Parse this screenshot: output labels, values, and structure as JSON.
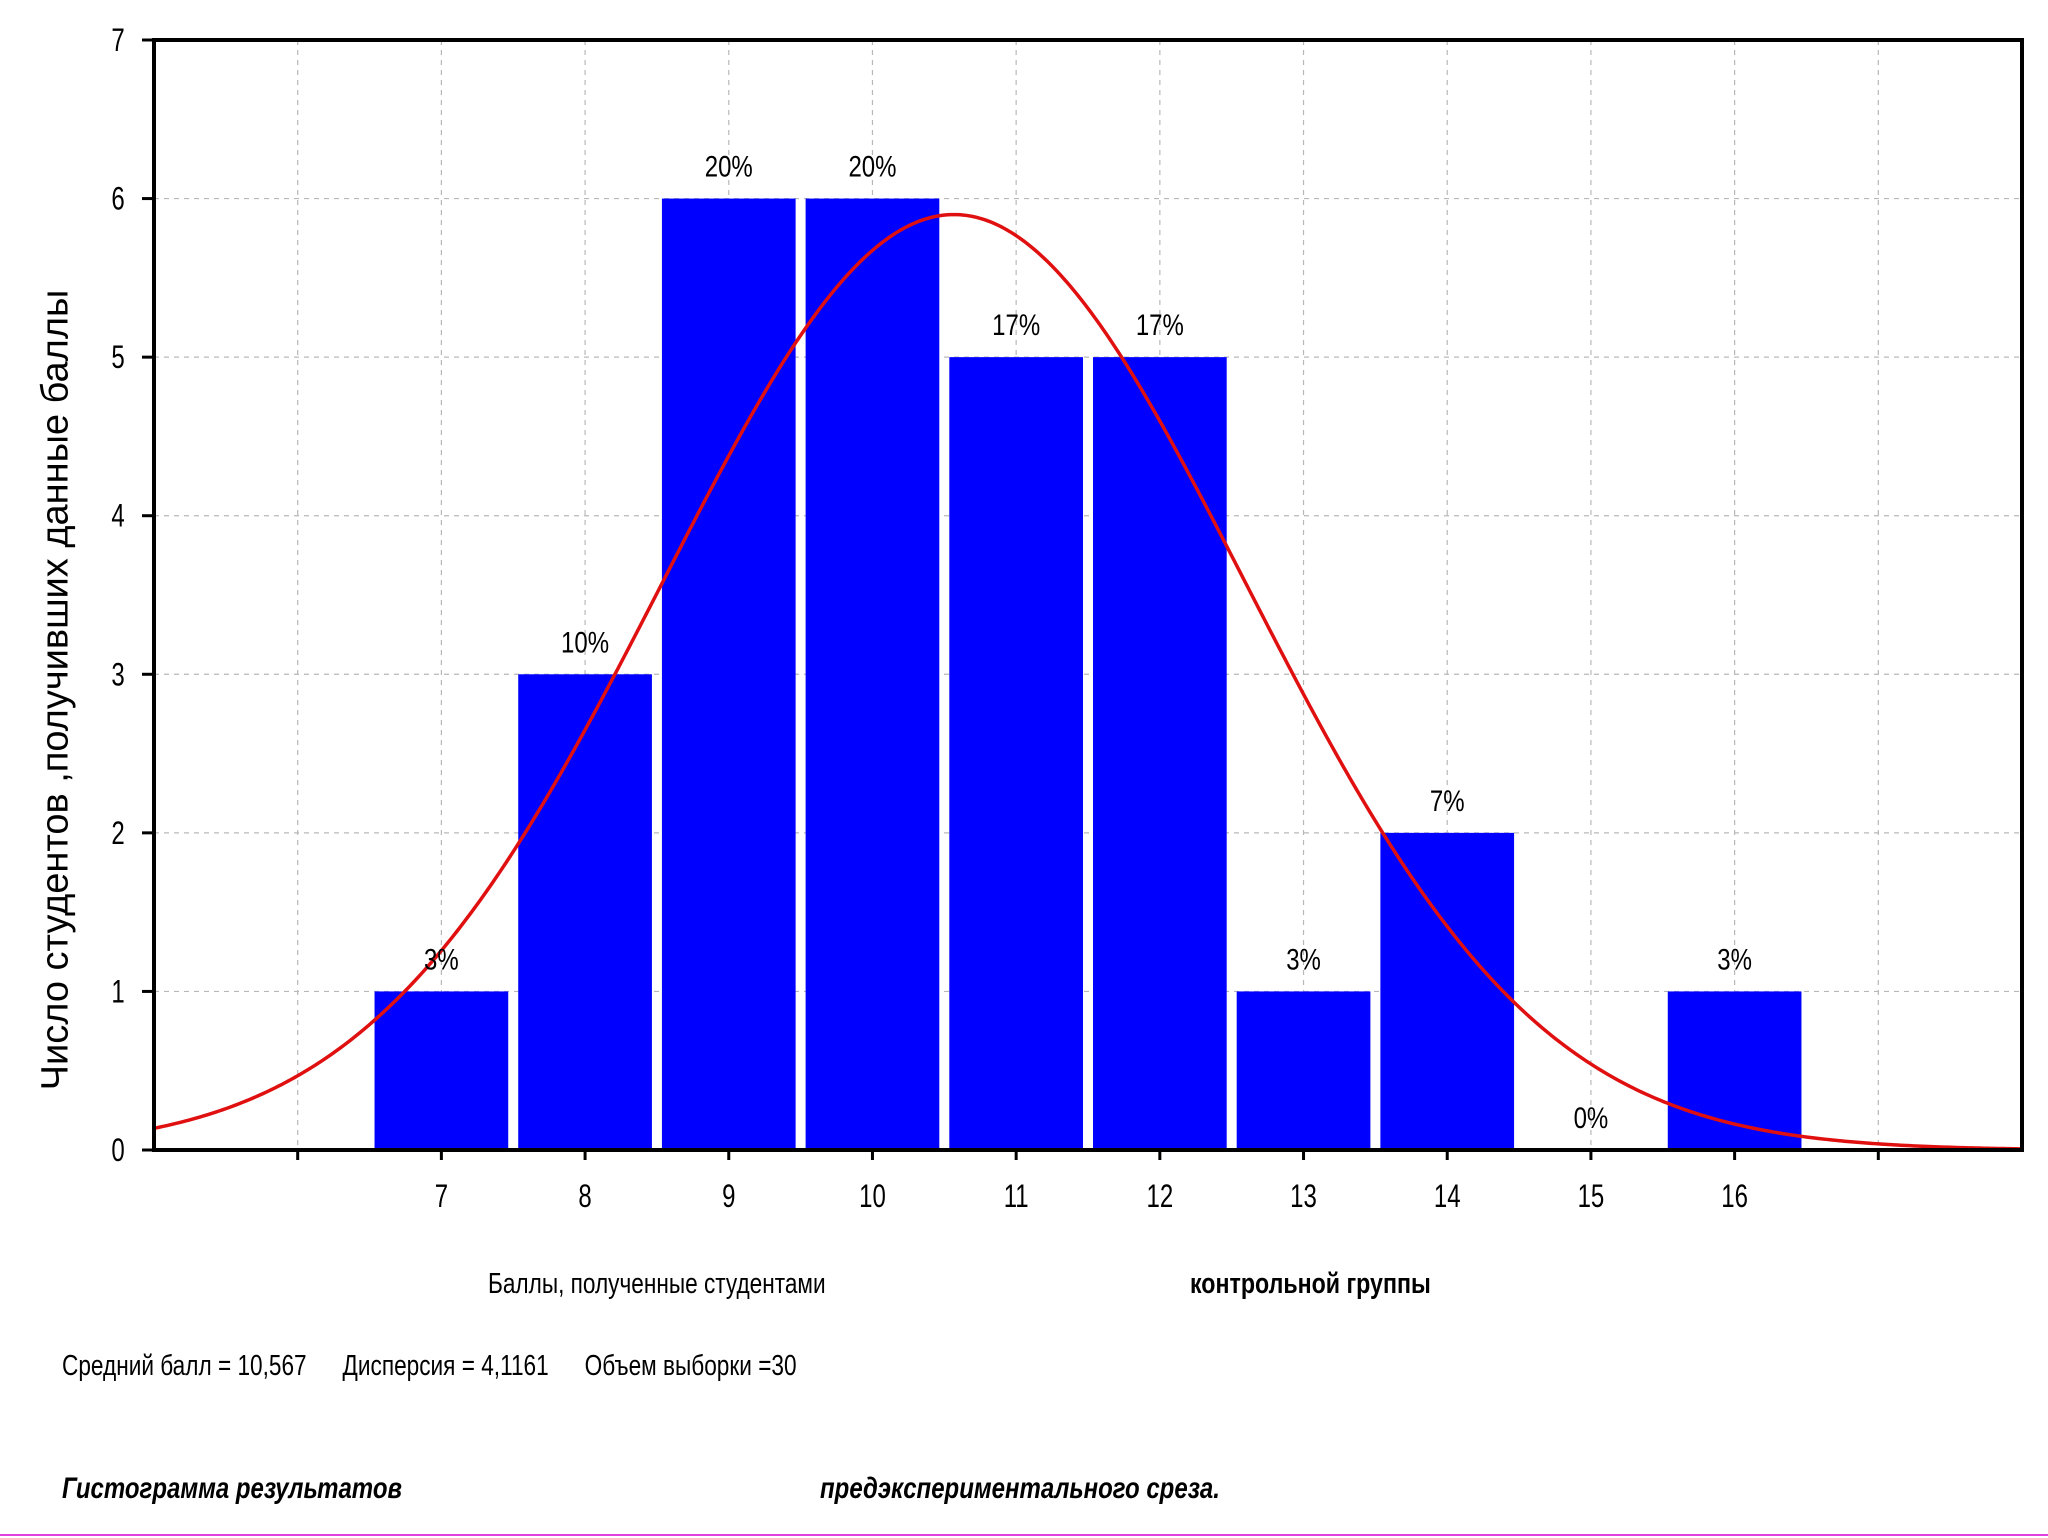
{
  "chart_data": {
    "type": "bar",
    "categories": [
      "7",
      "8",
      "9",
      "10",
      "11",
      "12",
      "13",
      "14",
      "15",
      "16"
    ],
    "values": [
      1,
      3,
      6,
      6,
      5,
      5,
      1,
      2,
      0,
      1
    ],
    "percent_labels": [
      "3%",
      "10%",
      "20%",
      "20%",
      "17%",
      "17%",
      "3%",
      "7%",
      "0%",
      "3%"
    ],
    "ylabel": "Число студентов ,получивших данные баллы",
    "ylim": [
      0,
      7
    ],
    "yticks": [
      "0",
      "1",
      "2",
      "3",
      "4",
      "5",
      "6",
      "7"
    ],
    "xlim": [
      5,
      18
    ],
    "grid": true,
    "bar_color": "#0000ff",
    "curve": {
      "type": "normal",
      "mean": 10.567,
      "variance": 4.1161,
      "n": 30,
      "color": "#e01010"
    },
    "xlabel_left": "Баллы, полученные студентами",
    "xlabel_right": "контрольной группы"
  },
  "stats": {
    "mean": "Средний балл = 10,567",
    "variance": "Дисперсия  = 4,1161",
    "sample": "Объем выборки =30"
  },
  "caption": {
    "left": "Гистограмма результатов",
    "right": "предэкспериментального среза."
  },
  "colors": {
    "bars": "#0000ff",
    "curve": "#e01010",
    "grid": "#b8b8b8",
    "bottom_rule": "#e040e0"
  }
}
